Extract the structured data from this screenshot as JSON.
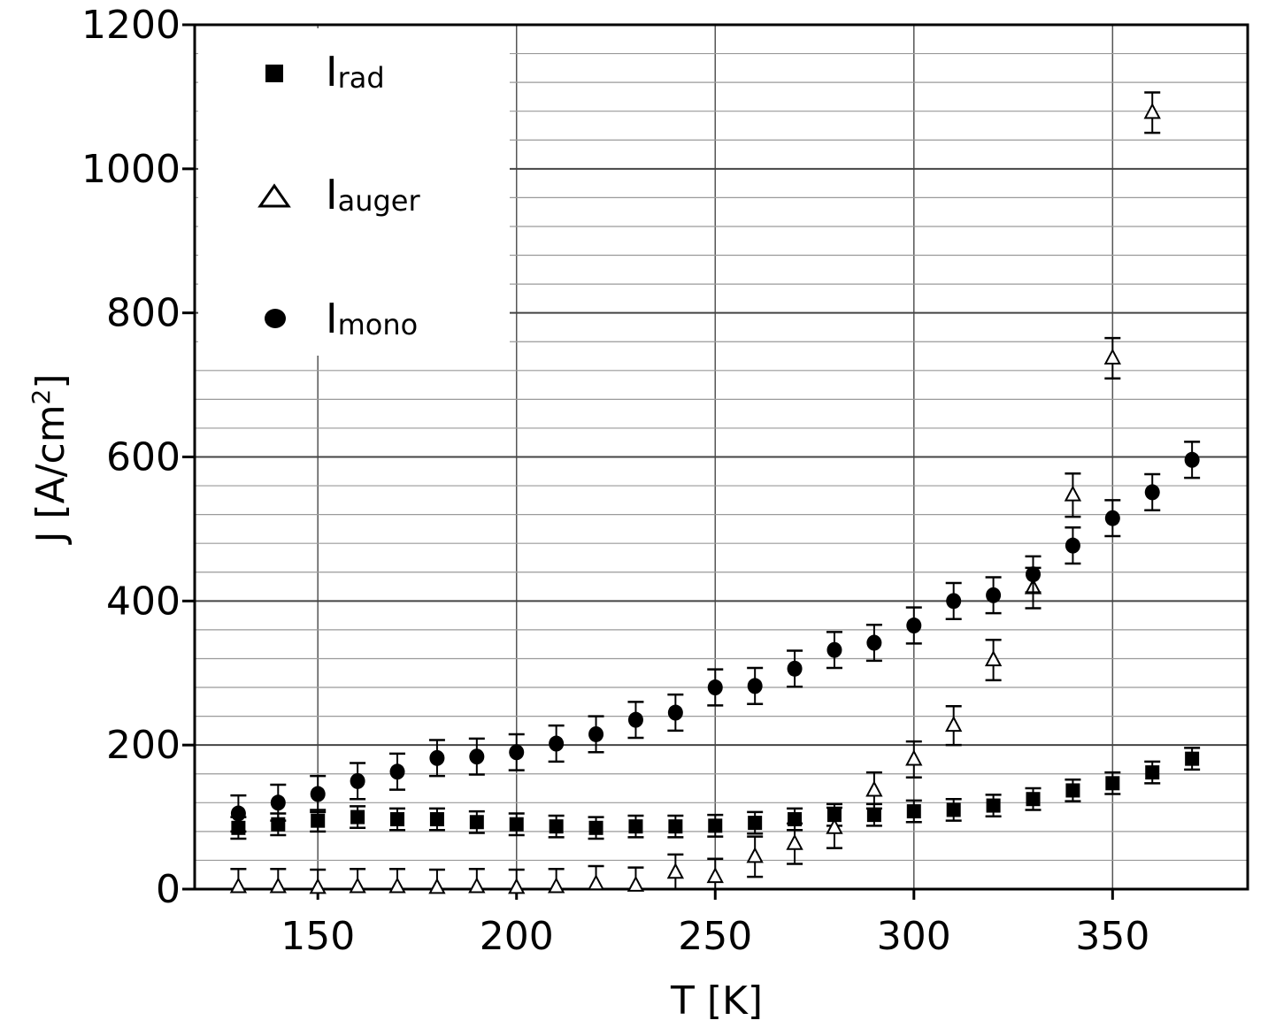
{
  "chart_data": {
    "type": "scatter",
    "title": "",
    "xlabel": "T [K]",
    "ylabel_main": "J [A/cm",
    "ylabel_sup": "2",
    "ylabel_end": "]",
    "xlim": [
      119,
      384
    ],
    "ylim": [
      0,
      1200
    ],
    "xticks": [
      150,
      200,
      250,
      300,
      350
    ],
    "yticks": [
      0,
      200,
      400,
      600,
      800,
      1000,
      1200
    ],
    "grid": true,
    "legend_position": "top-left",
    "series": [
      {
        "name_main": "I",
        "name_sub": "rad",
        "marker": "square",
        "points": [
          {
            "x": 130,
            "y": 85,
            "err": 15
          },
          {
            "x": 140,
            "y": 90,
            "err": 15
          },
          {
            "x": 150,
            "y": 95,
            "err": 15
          },
          {
            "x": 160,
            "y": 100,
            "err": 15
          },
          {
            "x": 170,
            "y": 97,
            "err": 15
          },
          {
            "x": 180,
            "y": 97,
            "err": 15
          },
          {
            "x": 190,
            "y": 93,
            "err": 15
          },
          {
            "x": 200,
            "y": 90,
            "err": 15
          },
          {
            "x": 210,
            "y": 87,
            "err": 15
          },
          {
            "x": 220,
            "y": 85,
            "err": 15
          },
          {
            "x": 230,
            "y": 87,
            "err": 15
          },
          {
            "x": 240,
            "y": 87,
            "err": 15
          },
          {
            "x": 250,
            "y": 88,
            "err": 15
          },
          {
            "x": 260,
            "y": 92,
            "err": 15
          },
          {
            "x": 270,
            "y": 97,
            "err": 15
          },
          {
            "x": 280,
            "y": 103,
            "err": 15
          },
          {
            "x": 290,
            "y": 103,
            "err": 15
          },
          {
            "x": 300,
            "y": 108,
            "err": 15
          },
          {
            "x": 310,
            "y": 110,
            "err": 15
          },
          {
            "x": 320,
            "y": 116,
            "err": 15
          },
          {
            "x": 330,
            "y": 125,
            "err": 15
          },
          {
            "x": 340,
            "y": 137,
            "err": 15
          },
          {
            "x": 350,
            "y": 147,
            "err": 15
          },
          {
            "x": 360,
            "y": 162,
            "err": 15
          },
          {
            "x": 370,
            "y": 181,
            "err": 15
          }
        ]
      },
      {
        "name_main": "I",
        "name_sub": "auger",
        "marker": "open-triangle",
        "points": [
          {
            "x": 130,
            "y": 3,
            "err": 25
          },
          {
            "x": 140,
            "y": 3,
            "err": 25
          },
          {
            "x": 150,
            "y": 2,
            "err": 25
          },
          {
            "x": 160,
            "y": 3,
            "err": 25
          },
          {
            "x": 170,
            "y": 3,
            "err": 25
          },
          {
            "x": 180,
            "y": 2,
            "err": 25
          },
          {
            "x": 190,
            "y": 3,
            "err": 25
          },
          {
            "x": 200,
            "y": 2,
            "err": 25
          },
          {
            "x": 210,
            "y": 3,
            "err": 25
          },
          {
            "x": 220,
            "y": 7,
            "err": 25
          },
          {
            "x": 230,
            "y": 5,
            "err": 25
          },
          {
            "x": 240,
            "y": 23,
            "err": 25
          },
          {
            "x": 250,
            "y": 17,
            "err": 25
          },
          {
            "x": 260,
            "y": 45,
            "err": 28
          },
          {
            "x": 270,
            "y": 63,
            "err": 28
          },
          {
            "x": 280,
            "y": 85,
            "err": 28
          },
          {
            "x": 290,
            "y": 137,
            "err": 25
          },
          {
            "x": 300,
            "y": 180,
            "err": 25
          },
          {
            "x": 310,
            "y": 227,
            "err": 27
          },
          {
            "x": 320,
            "y": 318,
            "err": 28
          },
          {
            "x": 330,
            "y": 418,
            "err": 28
          },
          {
            "x": 340,
            "y": 547,
            "err": 30
          },
          {
            "x": 350,
            "y": 737,
            "err": 28
          },
          {
            "x": 360,
            "y": 1078,
            "err": 28
          }
        ]
      },
      {
        "name_main": "I",
        "name_sub": "mono",
        "marker": "circle",
        "points": [
          {
            "x": 130,
            "y": 105,
            "err": 25
          },
          {
            "x": 140,
            "y": 120,
            "err": 25
          },
          {
            "x": 150,
            "y": 132,
            "err": 25
          },
          {
            "x": 160,
            "y": 150,
            "err": 25
          },
          {
            "x": 170,
            "y": 163,
            "err": 25
          },
          {
            "x": 180,
            "y": 182,
            "err": 25
          },
          {
            "x": 190,
            "y": 184,
            "err": 25
          },
          {
            "x": 200,
            "y": 190,
            "err": 25
          },
          {
            "x": 210,
            "y": 202,
            "err": 25
          },
          {
            "x": 220,
            "y": 215,
            "err": 25
          },
          {
            "x": 230,
            "y": 235,
            "err": 25
          },
          {
            "x": 240,
            "y": 245,
            "err": 25
          },
          {
            "x": 250,
            "y": 280,
            "err": 25
          },
          {
            "x": 260,
            "y": 282,
            "err": 25
          },
          {
            "x": 270,
            "y": 306,
            "err": 25
          },
          {
            "x": 280,
            "y": 332,
            "err": 25
          },
          {
            "x": 290,
            "y": 342,
            "err": 25
          },
          {
            "x": 300,
            "y": 366,
            "err": 25
          },
          {
            "x": 310,
            "y": 400,
            "err": 25
          },
          {
            "x": 320,
            "y": 408,
            "err": 25
          },
          {
            "x": 330,
            "y": 437,
            "err": 25
          },
          {
            "x": 340,
            "y": 477,
            "err": 25
          },
          {
            "x": 350,
            "y": 515,
            "err": 25
          },
          {
            "x": 360,
            "y": 551,
            "err": 25
          },
          {
            "x": 370,
            "y": 596,
            "err": 25
          }
        ]
      }
    ]
  }
}
